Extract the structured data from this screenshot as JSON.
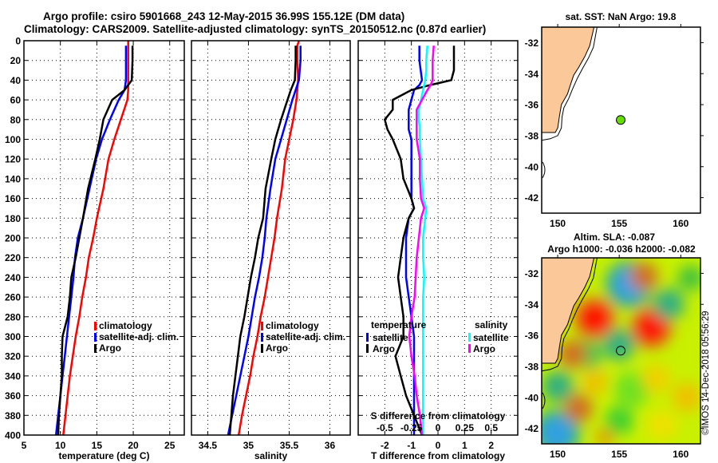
{
  "header": {
    "title_line1": "Argo profile: csiro 5901668_243 12-May-2015 36.99S 155.12E (DM data)",
    "title_line2": "Climatology: CARS2009. Satellite-adjusted climatology: synTS_20150512.nc (0.87d earlier)"
  },
  "colors": {
    "climatology": "#ff0000",
    "satellite_adj": "#0000ff",
    "argo": "#000000",
    "salinity_satellite": "#00ffff",
    "salinity_argo": "#ff00ff",
    "land": "#fbc89a",
    "float_marker": "#66dd00"
  },
  "chart_data": [
    {
      "id": "temperature",
      "type": "line",
      "xlabel": "temperature (deg C)",
      "ylabel": "",
      "xlim": [
        5,
        27
      ],
      "ylim": [
        400,
        0
      ],
      "xticks": [
        5,
        10,
        15,
        20,
        25
      ],
      "yticks": [
        0,
        20,
        40,
        60,
        80,
        100,
        120,
        140,
        160,
        180,
        200,
        220,
        240,
        260,
        280,
        300,
        320,
        340,
        360,
        380,
        400
      ],
      "grid": true,
      "legend": {
        "placement": "bottom-right",
        "entries": [
          "climatology",
          "satellite-adj. clim.",
          "Argo"
        ]
      },
      "depth": [
        0,
        5,
        20,
        40,
        50,
        60,
        80,
        100,
        120,
        150,
        180,
        200,
        220,
        240,
        260,
        280,
        300,
        320,
        340,
        360,
        380,
        400
      ],
      "series": [
        {
          "name": "climatology",
          "color": "#ff0000",
          "values": [
            19.3,
            19.3,
            19.3,
            19.3,
            19.3,
            19.2,
            18.3,
            17.4,
            16.6,
            15.9,
            15.0,
            14.5,
            13.9,
            13.5,
            13.0,
            12.6,
            12.1,
            11.7,
            11.3,
            11.0,
            10.7,
            10.4
          ]
        },
        {
          "name": "satellite-adj. clim.",
          "color": "#0000ff",
          "values": [
            null,
            19.0,
            19.0,
            19.0,
            18.8,
            18.0,
            16.8,
            15.7,
            14.9,
            14.0,
            13.1,
            12.4,
            12.0,
            11.8,
            11.5,
            11.2,
            10.9,
            10.6,
            10.3,
            10.0,
            9.7,
            9.4
          ]
        },
        {
          "name": "Argo",
          "color": "#000000",
          "values": [
            null,
            19.9,
            19.9,
            19.8,
            18.8,
            17.1,
            15.9,
            15.4,
            14.8,
            13.8,
            13.1,
            12.6,
            12.1,
            11.5,
            11.3,
            11.0,
            10.3,
            10.2,
            10.2,
            10.0,
            9.8,
            9.7
          ]
        }
      ]
    },
    {
      "id": "salinity",
      "type": "line",
      "xlabel": "salinity",
      "ylabel": "",
      "xlim": [
        34.3,
        36.25
      ],
      "ylim": [
        400,
        0
      ],
      "xticks": [
        34.5,
        35,
        35.5,
        36
      ],
      "grid": true,
      "legend": {
        "placement": "bottom-right",
        "entries": [
          "climatology",
          "satellite-adj. clim.",
          "Argo"
        ]
      },
      "depth": [
        0,
        5,
        20,
        40,
        50,
        60,
        80,
        100,
        120,
        150,
        180,
        200,
        220,
        240,
        260,
        280,
        300,
        320,
        340,
        360,
        380,
        400
      ],
      "series": [
        {
          "name": "climatology",
          "color": "#ff0000",
          "values": [
            35.62,
            35.6,
            35.6,
            35.61,
            35.6,
            35.59,
            35.55,
            35.5,
            35.45,
            35.41,
            35.35,
            35.32,
            35.28,
            35.24,
            35.2,
            35.15,
            35.11,
            35.06,
            35.02,
            34.97,
            34.92,
            34.88
          ]
        },
        {
          "name": "satellite-adj. clim.",
          "color": "#0000ff",
          "values": [
            null,
            35.64,
            35.64,
            35.62,
            35.58,
            35.54,
            35.47,
            35.4,
            35.33,
            35.27,
            35.22,
            35.2,
            35.17,
            35.13,
            35.08,
            35.04,
            35.0,
            34.95,
            34.9,
            34.85,
            34.8,
            34.75
          ]
        },
        {
          "name": "Argo",
          "color": "#000000",
          "values": [
            null,
            35.58,
            35.58,
            35.57,
            35.52,
            35.48,
            35.4,
            35.33,
            35.28,
            35.21,
            35.18,
            35.12,
            35.08,
            35.03,
            34.99,
            34.95,
            34.9,
            34.87,
            34.84,
            34.81,
            34.79,
            34.77
          ]
        }
      ]
    },
    {
      "id": "difference",
      "type": "line",
      "xlabel": "T difference from climatology",
      "x2label": "S difference from climatology",
      "xlim": [
        -3,
        3
      ],
      "x2lim": [
        -0.75,
        0.75
      ],
      "ylim": [
        400,
        0
      ],
      "xticks": [
        -2,
        -1,
        0,
        1,
        2
      ],
      "x2ticks": [
        -0.5,
        -0.25,
        0,
        0.25,
        0.5
      ],
      "grid": true,
      "legend": {
        "placement": "bottom",
        "groups": [
          {
            "title": "temperature",
            "entries": [
              "satellite",
              "Argo"
            ]
          },
          {
            "title": "salinity",
            "entries": [
              "satellite",
              "Argo"
            ]
          }
        ]
      },
      "depth": [
        5,
        20,
        30,
        40,
        45,
        50,
        60,
        70,
        80,
        90,
        100,
        120,
        140,
        160,
        170,
        180,
        200,
        220,
        240,
        260,
        280,
        300,
        320,
        340,
        360,
        380,
        400
      ],
      "series": [
        {
          "name": "temperature satellite",
          "axis": "T",
          "color": "#0000ff",
          "values": [
            -0.7,
            -0.7,
            -0.65,
            -0.6,
            -0.7,
            -0.9,
            -1.0,
            -1.1,
            -1.1,
            -1.1,
            -1.0,
            -1.0,
            -1.0,
            -1.0,
            -0.9,
            -1.1,
            -1.2,
            -1.2,
            -1.2,
            -1.1,
            -1.0,
            -0.9,
            -0.9,
            -0.9,
            -0.9,
            -0.9,
            -0.9
          ]
        },
        {
          "name": "temperature Argo",
          "axis": "T",
          "color": "#000000",
          "values": [
            0.6,
            0.6,
            0.6,
            0.5,
            -0.3,
            -1.0,
            -1.7,
            -1.7,
            -2.0,
            -1.9,
            -1.7,
            -1.4,
            -1.3,
            -1.0,
            -0.9,
            -1.1,
            -1.3,
            -1.4,
            -1.5,
            -1.4,
            -1.3,
            -1.3,
            -1.6,
            -1.4,
            -1.2,
            -0.9,
            -0.6
          ]
        },
        {
          "name": "salinity satellite",
          "axis": "S",
          "color": "#00ffff",
          "values": [
            -0.1,
            -0.11,
            -0.11,
            -0.12,
            -0.13,
            -0.14,
            -0.16,
            -0.18,
            -0.18,
            -0.17,
            -0.17,
            -0.16,
            -0.15,
            -0.14,
            -0.11,
            -0.12,
            -0.14,
            -0.14,
            -0.13,
            -0.14,
            -0.14,
            -0.14,
            -0.14,
            -0.14,
            -0.14,
            -0.14,
            -0.14
          ]
        },
        {
          "name": "salinity Argo",
          "axis": "S",
          "color": "#ff00ff",
          "values": [
            -0.04,
            -0.05,
            -0.05,
            -0.05,
            -0.07,
            -0.1,
            -0.15,
            -0.2,
            -0.2,
            -0.2,
            -0.2,
            -0.17,
            -0.17,
            -0.16,
            -0.13,
            -0.16,
            -0.18,
            -0.2,
            -0.21,
            -0.22,
            -0.25,
            -0.27,
            -0.25,
            -0.22,
            -0.2,
            -0.17,
            -0.15
          ]
        }
      ]
    },
    {
      "id": "sst_map",
      "type": "scatter",
      "title": "sat. SST: NaN Argo: 19.8",
      "xlim": [
        148.7,
        161.6
      ],
      "ylim": [
        -43,
        -31
      ],
      "xticks": [
        150,
        155,
        160
      ],
      "yticks": [
        -32,
        -34,
        -36,
        -38,
        -40,
        -42
      ],
      "points": [
        {
          "lon": 155.12,
          "lat": -36.99,
          "color": "#66dd00"
        }
      ]
    },
    {
      "id": "sla_map",
      "type": "heatmap",
      "title_line1": "Altim. SLA: -0.087",
      "title_line2": "Argo h1000: -0.036 h2000: -0.082",
      "xlim": [
        148.7,
        161.6
      ],
      "ylim": [
        -43,
        -31
      ],
      "xticks": [
        150,
        155,
        160
      ],
      "yticks": [
        -32,
        -34,
        -36,
        -38,
        -40,
        -42
      ],
      "points": [
        {
          "lon": 155.12,
          "lat": -36.99
        }
      ],
      "features": [
        {
          "kind": "low",
          "lon": 155.8,
          "lat": -32.7,
          "color": "#30a0e0"
        },
        {
          "kind": "low",
          "lon": 149.9,
          "lat": -42.3,
          "color": "#30a0e0"
        },
        {
          "kind": "high",
          "lon": 153.0,
          "lat": -34.9,
          "color": "#ff0000"
        },
        {
          "kind": "high",
          "lon": 157.6,
          "lat": -35.5,
          "color": "#ff0000"
        },
        {
          "kind": "mid-high",
          "lon": 157.0,
          "lat": -32.2,
          "color": "#d07020"
        },
        {
          "kind": "mid-high",
          "lon": 151.7,
          "lat": -40.7,
          "color": "#d07020"
        },
        {
          "kind": "mid-high",
          "lon": 151.2,
          "lat": -37.2,
          "color": "#d07020"
        },
        {
          "kind": "mid-low",
          "lon": 159.0,
          "lat": -34.0,
          "color": "#30b080"
        },
        {
          "kind": "mid-low",
          "lon": 155.0,
          "lat": -36.6,
          "color": "#30b080"
        },
        {
          "kind": "mid-low",
          "lon": 150.0,
          "lat": -39.3,
          "color": "#30b080"
        }
      ]
    }
  ],
  "footer": {
    "stamp": "©IMOS 14-Dec-2018 05:56:29"
  }
}
